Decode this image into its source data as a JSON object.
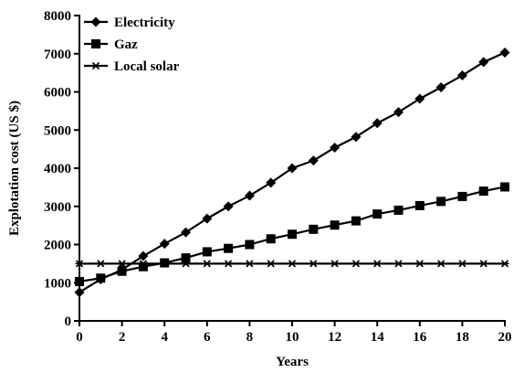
{
  "chart_data": {
    "type": "line",
    "xlabel": "Years",
    "ylabel": "Explotation cost (US $)",
    "xlim": [
      0,
      20
    ],
    "ylim": [
      0,
      8000
    ],
    "xticks": [
      0,
      2,
      4,
      6,
      8,
      10,
      12,
      14,
      16,
      18,
      20
    ],
    "yticks": [
      0,
      1000,
      2000,
      3000,
      4000,
      5000,
      6000,
      7000,
      8000
    ],
    "x": [
      0,
      1,
      2,
      3,
      4,
      5,
      6,
      7,
      8,
      9,
      10,
      11,
      12,
      13,
      14,
      15,
      16,
      17,
      18,
      19,
      20
    ],
    "grid": false,
    "legend_position": "top-left",
    "series": [
      {
        "name": "Electricity",
        "marker": "diamond",
        "values": [
          750,
          1090,
          1340,
          1700,
          2020,
          2320,
          2680,
          3000,
          3280,
          3620,
          4000,
          4200,
          4540,
          4820,
          5180,
          5470,
          5820,
          6120,
          6430,
          6780,
          7030
        ]
      },
      {
        "name": "Gaz",
        "marker": "square",
        "values": [
          1030,
          1120,
          1300,
          1420,
          1520,
          1650,
          1810,
          1900,
          2000,
          2150,
          2270,
          2400,
          2510,
          2620,
          2800,
          2900,
          3020,
          3130,
          3260,
          3400,
          3510
        ]
      },
      {
        "name": "Local solar",
        "marker": "star",
        "values": [
          1500,
          1500,
          1500,
          1500,
          1500,
          1500,
          1500,
          1500,
          1500,
          1500,
          1500,
          1500,
          1500,
          1500,
          1500,
          1500,
          1500,
          1500,
          1500,
          1500,
          1500
        ]
      }
    ]
  }
}
